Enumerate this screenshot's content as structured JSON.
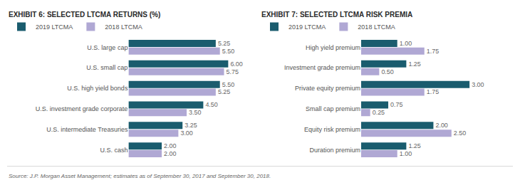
{
  "chart_data": [
    {
      "type": "bar",
      "orientation": "horizontal",
      "title": "EXHIBIT 6: SELECTED LTCMA RETURNS (%)",
      "categories": [
        "U.S. large cap",
        "U.S. small cap",
        "U.S. high yield bonds",
        "U.S. investment grade corporate",
        "U.S. intermediate Treasuries",
        "U.S. cash"
      ],
      "series": [
        {
          "name": "2019 LTCMA",
          "color": "#1a5c6e",
          "values": [
            5.25,
            6.0,
            5.5,
            4.5,
            3.25,
            2.0
          ],
          "value_labels": [
            "5.25",
            "6.00",
            "5.50",
            "4.50",
            "3.25",
            "2.00"
          ]
        },
        {
          "name": "2018 LTCMA",
          "color": "#b0a8d4",
          "values": [
            5.5,
            5.75,
            5.25,
            3.5,
            3.0,
            2.0
          ],
          "value_labels": [
            "5.50",
            "5.75",
            "5.25",
            "3.50",
            "3.00",
            "2.00"
          ]
        }
      ],
      "xlim": [
        0,
        7
      ],
      "data_labels": true,
      "tick_labels": "y",
      "grid": false,
      "legend": "top left"
    },
    {
      "type": "bar",
      "orientation": "horizontal",
      "title": "EXHIBIT 7: SELECTED LTCMA RISK PREMIA",
      "categories": [
        "High yield premium",
        "Investment grade premium",
        "Private equity premium",
        "Small cap premium",
        "Equity risk premium",
        "Duration premium"
      ],
      "series": [
        {
          "name": "2019 LTCMA",
          "color": "#1a5c6e",
          "values": [
            1.0,
            1.25,
            3.0,
            0.75,
            2.0,
            1.25
          ],
          "value_labels": [
            "1.00",
            "1.25",
            "3.00",
            "0.75",
            "2.00",
            "1.25"
          ]
        },
        {
          "name": "2018 LTCMA",
          "color": "#b0a8d4",
          "values": [
            1.75,
            0.5,
            1.75,
            0.25,
            2.5,
            1.0
          ],
          "value_labels": [
            "1.75",
            "0.50",
            "1.75",
            "0.25",
            "2.50",
            "1.00"
          ]
        }
      ],
      "xlim": [
        0,
        3.5
      ],
      "data_labels": true,
      "tick_labels": "y",
      "grid": false,
      "legend": "top left"
    }
  ],
  "annotations": [
    "Source: J.P. Morgan Asset Management; estimates as of September 30, 2017 and September 30, 2018."
  ]
}
